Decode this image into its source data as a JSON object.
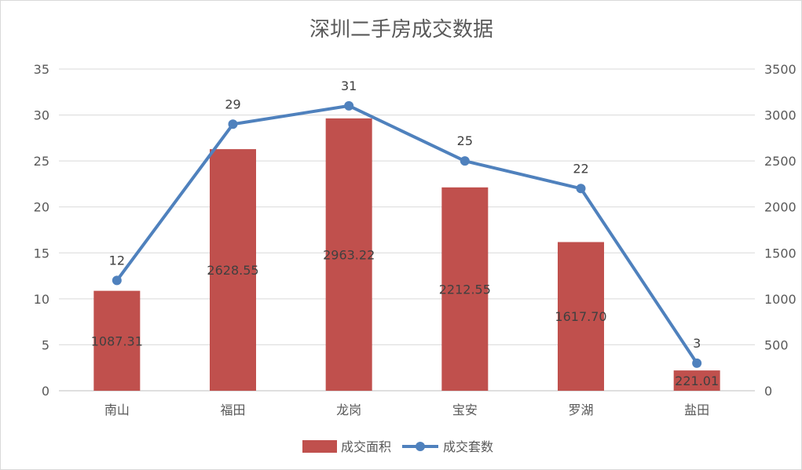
{
  "chart_data": {
    "type": "bar+line",
    "title": "深圳二手房成交数据",
    "categories": [
      "南山",
      "福田",
      "龙岗",
      "宝安",
      "罗湖",
      "盐田"
    ],
    "series": [
      {
        "name": "成交面积",
        "type": "bar",
        "axis": "right",
        "color": "#c0504d",
        "values": [
          1087.31,
          2628.55,
          2963.22,
          2212.55,
          1617.7,
          221.01
        ],
        "labels": [
          "1087.31",
          "2628.55",
          "2963.22",
          "2212.55",
          "1617.70",
          "221.01"
        ]
      },
      {
        "name": "成交套数",
        "type": "line",
        "axis": "left",
        "color": "#4f81bd",
        "values": [
          12,
          29,
          31,
          25,
          22,
          3
        ],
        "labels": [
          "12",
          "29",
          "31",
          "25",
          "22",
          "3"
        ]
      }
    ],
    "y_left": {
      "range": [
        0,
        35
      ],
      "ticks": [
        "0",
        "5",
        "10",
        "15",
        "20",
        "25",
        "30",
        "35"
      ]
    },
    "y_right": {
      "range": [
        0,
        3500
      ],
      "ticks": [
        "0",
        "500",
        "1000",
        "1500",
        "2000",
        "2500",
        "3000",
        "3500"
      ]
    },
    "grid": true,
    "legend": "bottom"
  }
}
